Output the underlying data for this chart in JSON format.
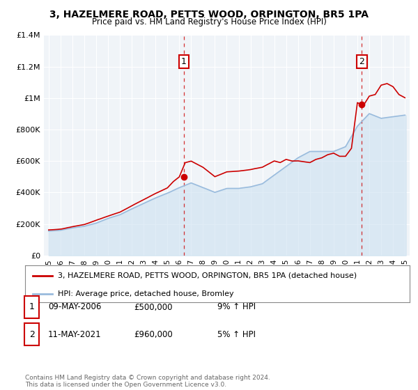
{
  "title": "3, HAZELMERE ROAD, PETTS WOOD, ORPINGTON, BR5 1PA",
  "subtitle": "Price paid vs. HM Land Registry's House Price Index (HPI)",
  "property_color": "#cc0000",
  "hpi_color": "#99bbdd",
  "hpi_fill_color": "#cce0f0",
  "vline_color": "#cc0000",
  "annotation_box_color": "#cc0000",
  "sale1_year": 2006.38,
  "sale1_price": 500000,
  "sale2_year": 2021.38,
  "sale2_price": 960000,
  "ylim": [
    0,
    1400000
  ],
  "yticks": [
    0,
    200000,
    400000,
    600000,
    800000,
    1000000,
    1200000,
    1400000
  ],
  "ytick_labels": [
    "£0",
    "£200K",
    "£400K",
    "£600K",
    "£800K",
    "£1M",
    "£1.2M",
    "£1.4M"
  ],
  "xlim_min": 1994.6,
  "xlim_max": 2025.4,
  "xtick_years": [
    1995,
    1996,
    1997,
    1998,
    1999,
    2000,
    2001,
    2002,
    2003,
    2004,
    2005,
    2006,
    2007,
    2008,
    2009,
    2010,
    2011,
    2012,
    2013,
    2014,
    2015,
    2016,
    2017,
    2018,
    2019,
    2020,
    2021,
    2022,
    2023,
    2024,
    2025
  ],
  "legend_property_label": "3, HAZELMERE ROAD, PETTS WOOD, ORPINGTON, BR5 1PA (detached house)",
  "legend_hpi_label": "HPI: Average price, detached house, Bromley",
  "table_rows": [
    {
      "num": "1",
      "date": "09-MAY-2006",
      "price": "£500,000",
      "hpi": "9% ↑ HPI"
    },
    {
      "num": "2",
      "date": "11-MAY-2021",
      "price": "£960,000",
      "hpi": "5% ↑ HPI"
    }
  ],
  "footer": "Contains HM Land Registry data © Crown copyright and database right 2024.\nThis data is licensed under the Open Government Licence v3.0.",
  "background_color": "#ffffff",
  "chart_bg_color": "#f0f4f8",
  "grid_color": "#ffffff"
}
